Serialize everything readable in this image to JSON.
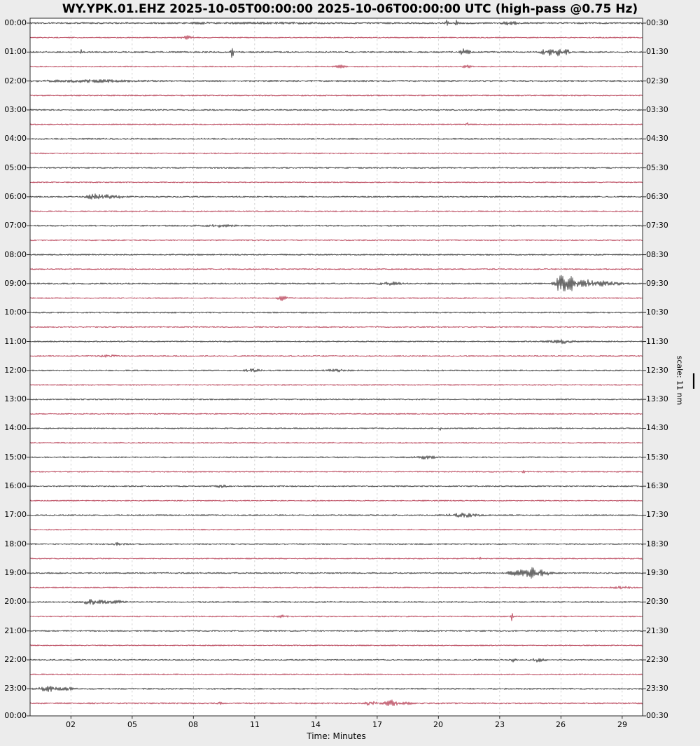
{
  "title": "WY.YPK.01.EHZ 2025-10-05T00:00:00 2025-10-06T00:00:00 UTC (high-pass @0.75 Hz)",
  "chart_data": {
    "type": "line",
    "subtype": "helicorder-dayplot",
    "station": "WY.YPK.01.EHZ",
    "start_time": "2025-10-05T00:00:00",
    "end_time": "2025-10-06T00:00:00",
    "timezone": "UTC",
    "filter": "high-pass @0.75 Hz",
    "xlabel": "Time: Minutes",
    "x_tick_labels": [
      "02",
      "05",
      "08",
      "11",
      "14",
      "17",
      "20",
      "23",
      "26",
      "29"
    ],
    "x_tick_minutes": [
      2,
      5,
      8,
      11,
      14,
      17,
      20,
      23,
      26,
      29
    ],
    "xlim": [
      0,
      30
    ],
    "minutes_per_line": 30,
    "grid": "vertical-dashed",
    "scale_label": "scale: 11 nm",
    "left_axis_bottom_label": "00:00",
    "right_axis_bottom_label": "00:30",
    "trace_colors": {
      "black": "#1c1c1c",
      "red": "#ab1e38"
    },
    "rows": [
      {
        "left": "00:00",
        "right": "00:30",
        "color": "black",
        "noise": 1.3,
        "events": [
          [
            8.3,
            2.0,
            0.3
          ],
          [
            12.0,
            0.7,
            2.5
          ],
          [
            20.4,
            5.5,
            0.06
          ],
          [
            20.9,
            4.0,
            0.06
          ],
          [
            23.3,
            2.5,
            0.2
          ],
          [
            23.7,
            2.0,
            0.15
          ]
        ]
      },
      {
        "left": null,
        "right": null,
        "color": "red",
        "noise": 1.0,
        "events": [
          [
            7.7,
            3.5,
            0.22
          ]
        ]
      },
      {
        "left": "01:00",
        "right": "01:30",
        "color": "black",
        "noise": 1.3,
        "events": [
          [
            2.5,
            3.5,
            0.05
          ],
          [
            9.9,
            11.0,
            0.05
          ],
          [
            21.3,
            4.5,
            0.25
          ],
          [
            25.1,
            3.5,
            0.1
          ],
          [
            25.5,
            5.5,
            0.12
          ],
          [
            25.9,
            6.5,
            0.12
          ],
          [
            26.3,
            3.5,
            0.15
          ]
        ]
      },
      {
        "left": null,
        "right": null,
        "color": "red",
        "noise": 1.0,
        "events": [
          [
            15.2,
            2.2,
            0.25
          ],
          [
            21.4,
            2.0,
            0.2
          ]
        ]
      },
      {
        "left": "02:00",
        "right": "02:30",
        "color": "black",
        "noise": 1.35,
        "events": [
          [
            3.0,
            1.2,
            2.2
          ]
        ]
      },
      {
        "left": null,
        "right": null,
        "color": "red",
        "noise": 1.0,
        "events": []
      },
      {
        "left": "03:00",
        "right": "03:30",
        "color": "black",
        "noise": 1.15,
        "events": []
      },
      {
        "left": null,
        "right": null,
        "color": "red",
        "noise": 1.0,
        "events": [
          [
            21.4,
            2.6,
            0.06
          ]
        ]
      },
      {
        "left": "04:00",
        "right": "04:30",
        "color": "black",
        "noise": 1.2,
        "events": []
      },
      {
        "left": null,
        "right": null,
        "color": "red",
        "noise": 1.0,
        "events": []
      },
      {
        "left": "05:00",
        "right": "05:30",
        "color": "black",
        "noise": 1.15,
        "events": []
      },
      {
        "left": null,
        "right": null,
        "color": "red",
        "noise": 1.0,
        "events": []
      },
      {
        "left": "06:00",
        "right": "06:30",
        "color": "black",
        "noise": 1.2,
        "events": [
          [
            3.3,
            4.2,
            0.45
          ],
          [
            4.2,
            1.8,
            0.5
          ]
        ]
      },
      {
        "left": null,
        "right": null,
        "color": "red",
        "noise": 1.0,
        "events": []
      },
      {
        "left": "07:00",
        "right": "07:30",
        "color": "black",
        "noise": 1.2,
        "events": [
          [
            9.2,
            1.5,
            0.7
          ]
        ]
      },
      {
        "left": null,
        "right": null,
        "color": "red",
        "noise": 1.0,
        "events": []
      },
      {
        "left": "08:00",
        "right": "08:30",
        "color": "black",
        "noise": 1.15,
        "events": []
      },
      {
        "left": null,
        "right": null,
        "color": "red",
        "noise": 1.05,
        "events": []
      },
      {
        "left": "09:00",
        "right": "09:30",
        "color": "black",
        "noise": 1.2,
        "events": [
          [
            17.7,
            2.0,
            0.5
          ],
          [
            25.9,
            8.0,
            0.22
          ],
          [
            26.35,
            13.0,
            0.33
          ],
          [
            27.1,
            5.5,
            0.4
          ],
          [
            27.9,
            2.8,
            0.55
          ],
          [
            28.6,
            1.6,
            0.5
          ]
        ]
      },
      {
        "left": null,
        "right": null,
        "color": "red",
        "noise": 1.0,
        "events": [
          [
            12.35,
            3.2,
            0.22
          ]
        ]
      },
      {
        "left": "10:00",
        "right": "10:30",
        "color": "black",
        "noise": 1.1,
        "events": []
      },
      {
        "left": null,
        "right": null,
        "color": "red",
        "noise": 1.0,
        "events": []
      },
      {
        "left": "11:00",
        "right": "11:30",
        "color": "black",
        "noise": 1.1,
        "events": [
          [
            26.0,
            2.6,
            0.55
          ]
        ]
      },
      {
        "left": null,
        "right": null,
        "color": "red",
        "noise": 1.0,
        "events": [
          [
            3.8,
            1.7,
            0.35
          ]
        ]
      },
      {
        "left": "12:00",
        "right": "12:30",
        "color": "black",
        "noise": 1.1,
        "events": [
          [
            10.9,
            1.7,
            0.35
          ],
          [
            15.0,
            1.3,
            0.5
          ]
        ]
      },
      {
        "left": null,
        "right": null,
        "color": "red",
        "noise": 1.0,
        "events": []
      },
      {
        "left": "13:00",
        "right": "13:30",
        "color": "black",
        "noise": 1.1,
        "events": []
      },
      {
        "left": null,
        "right": null,
        "color": "red",
        "noise": 1.0,
        "events": []
      },
      {
        "left": "14:00",
        "right": "14:30",
        "color": "black",
        "noise": 1.1,
        "events": [
          [
            20.1,
            2.0,
            0.06
          ]
        ]
      },
      {
        "left": null,
        "right": null,
        "color": "red",
        "noise": 1.0,
        "events": []
      },
      {
        "left": "15:00",
        "right": "15:30",
        "color": "black",
        "noise": 1.1,
        "events": [
          [
            19.4,
            2.4,
            0.45
          ]
        ]
      },
      {
        "left": null,
        "right": null,
        "color": "red",
        "noise": 1.0,
        "events": [
          [
            24.2,
            2.4,
            0.07
          ]
        ]
      },
      {
        "left": "16:00",
        "right": "16:30",
        "color": "black",
        "noise": 1.1,
        "events": [
          [
            9.35,
            2.2,
            0.22
          ]
        ]
      },
      {
        "left": null,
        "right": null,
        "color": "red",
        "noise": 1.0,
        "events": []
      },
      {
        "left": "17:00",
        "right": "17:30",
        "color": "black",
        "noise": 1.1,
        "events": [
          [
            21.2,
            2.6,
            0.7
          ]
        ]
      },
      {
        "left": null,
        "right": null,
        "color": "red",
        "noise": 1.0,
        "events": []
      },
      {
        "left": "18:00",
        "right": "18:30",
        "color": "black",
        "noise": 1.1,
        "events": [
          [
            4.4,
            2.2,
            0.28
          ]
        ]
      },
      {
        "left": null,
        "right": null,
        "color": "red",
        "noise": 1.0,
        "events": [
          [
            22.0,
            2.4,
            0.06
          ]
        ]
      },
      {
        "left": "19:00",
        "right": "19:30",
        "color": "black",
        "noise": 1.2,
        "events": [
          [
            23.8,
            6.0,
            0.32
          ],
          [
            24.6,
            8.0,
            0.33
          ],
          [
            25.2,
            3.2,
            0.3
          ]
        ]
      },
      {
        "left": null,
        "right": null,
        "color": "red",
        "noise": 1.0,
        "events": [
          [
            29.0,
            1.5,
            0.45
          ]
        ]
      },
      {
        "left": "20:00",
        "right": "20:30",
        "color": "black",
        "noise": 1.2,
        "events": [
          [
            3.1,
            3.2,
            0.55
          ],
          [
            4.2,
            1.7,
            0.4
          ]
        ]
      },
      {
        "left": null,
        "right": null,
        "color": "red",
        "noise": 1.0,
        "events": [
          [
            12.3,
            1.7,
            0.28
          ],
          [
            23.6,
            6.0,
            0.05
          ]
        ]
      },
      {
        "left": "21:00",
        "right": "21:30",
        "color": "black",
        "noise": 1.1,
        "events": []
      },
      {
        "left": null,
        "right": null,
        "color": "red",
        "noise": 1.0,
        "events": []
      },
      {
        "left": "22:00",
        "right": "22:30",
        "color": "black",
        "noise": 1.1,
        "events": [
          [
            23.7,
            2.8,
            0.13
          ],
          [
            24.9,
            3.2,
            0.3
          ]
        ]
      },
      {
        "left": null,
        "right": null,
        "color": "red",
        "noise": 1.0,
        "events": []
      },
      {
        "left": "23:00",
        "right": "23:30",
        "color": "black",
        "noise": 1.2,
        "events": [
          [
            0.9,
            3.2,
            0.45
          ],
          [
            1.8,
            1.7,
            0.35
          ]
        ]
      },
      {
        "left": null,
        "right": null,
        "color": "red",
        "noise": 1.1,
        "events": [
          [
            9.3,
            2.6,
            0.07
          ],
          [
            16.7,
            3.2,
            0.28
          ],
          [
            17.7,
            4.2,
            0.32
          ],
          [
            18.4,
            1.8,
            0.3
          ]
        ]
      }
    ]
  }
}
